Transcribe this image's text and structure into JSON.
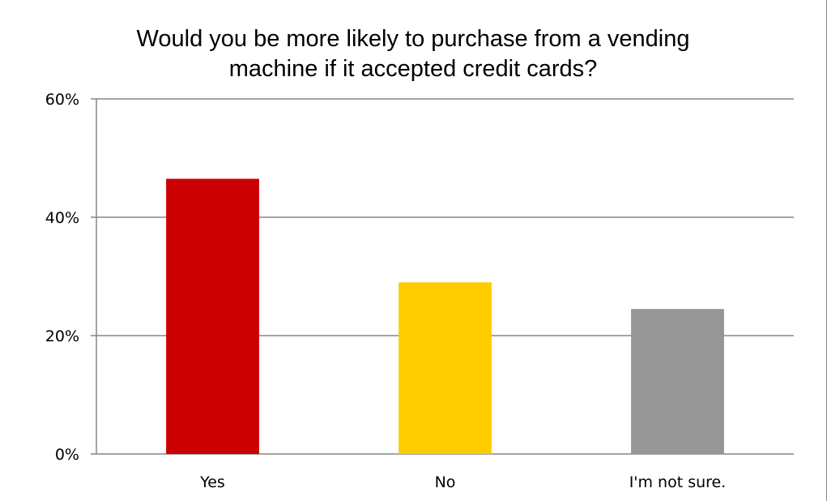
{
  "chart_data": {
    "type": "bar",
    "title": "Would you be more likely to purchase from a vending\nmachine if it accepted credit cards?",
    "xlabel": "",
    "ylabel": "",
    "categories": [
      "Yes",
      "No",
      "I'm not sure."
    ],
    "values": [
      46.5,
      29,
      24.5
    ],
    "colors": [
      "#CC0000",
      "#FFCC00",
      "#969696"
    ],
    "ylim": [
      0,
      60
    ],
    "yticks": [
      0,
      20,
      40,
      60
    ],
    "ytick_labels": [
      "0%",
      "20%",
      "40%",
      "60%"
    ],
    "grid": true,
    "legend": "none"
  }
}
